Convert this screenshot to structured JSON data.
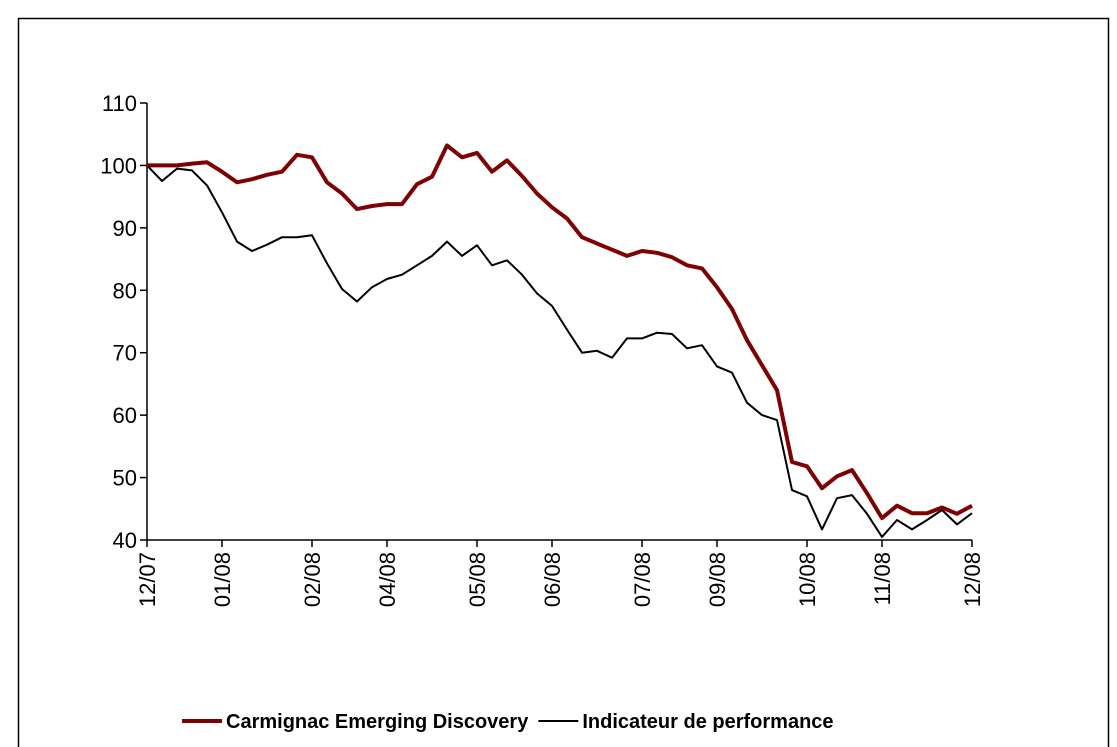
{
  "chart_data": {
    "type": "line",
    "categories": [
      "12/07",
      null,
      null,
      null,
      null,
      "01/08",
      null,
      null,
      null,
      null,
      null,
      "02/08",
      null,
      null,
      null,
      null,
      "04/08",
      null,
      null,
      null,
      null,
      null,
      "05/08",
      null,
      null,
      null,
      null,
      "06/08",
      null,
      null,
      null,
      null,
      null,
      "07/08",
      null,
      null,
      null,
      null,
      "09/08",
      null,
      null,
      null,
      null,
      null,
      "10/08",
      null,
      null,
      null,
      null,
      "11/08",
      null,
      null,
      null,
      null,
      null,
      "12/08"
    ],
    "series": [
      {
        "name": "Carmignac Emerging Discovery",
        "color": "#7f0000",
        "width": 4,
        "values": [
          100,
          100,
          100,
          100.3,
          100.5,
          99,
          97.3,
          97.8,
          98.5,
          99,
          101.7,
          101.3,
          97.3,
          95.5,
          93,
          93.5,
          93.8,
          93.8,
          97,
          98.2,
          103.2,
          101.3,
          102,
          99,
          100.8,
          98.3,
          95.5,
          93.3,
          91.5,
          88.5,
          87.5,
          86.5,
          85.5,
          86.3,
          86,
          85.3,
          84,
          83.5,
          80.5,
          77,
          72,
          68,
          64,
          52.5,
          51.8,
          48.3,
          50.2,
          51.2,
          47.5,
          43.5,
          45.5,
          44.3,
          44.3,
          45.2,
          44.2,
          45.5
        ]
      },
      {
        "name": "Indicateur de performance",
        "color": "#000000",
        "width": 2,
        "values": [
          100,
          97.5,
          99.5,
          99.2,
          96.8,
          92.5,
          87.8,
          86.3,
          87.3,
          88.5,
          88.5,
          88.8,
          84.3,
          80.2,
          78.2,
          80.5,
          81.8,
          82.5,
          84,
          85.5,
          87.8,
          85.5,
          87.2,
          84,
          84.8,
          82.5,
          79.5,
          77.5,
          73.7,
          70,
          70.3,
          69.2,
          72.3,
          72.3,
          73.2,
          73,
          70.7,
          71.2,
          67.8,
          66.8,
          62,
          60,
          59.2,
          48,
          47,
          41.7,
          46.7,
          47.2,
          44.2,
          40.5,
          43.2,
          41.7,
          43.2,
          44.8,
          42.5,
          44.3
        ]
      }
    ],
    "ylim": [
      40,
      110
    ],
    "yticks": [
      40,
      50,
      60,
      70,
      80,
      90,
      100,
      110
    ],
    "grid": false,
    "legend": "bottom"
  }
}
